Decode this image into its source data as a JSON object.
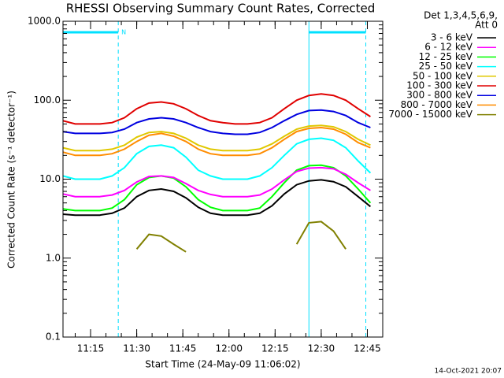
{
  "chart_data": {
    "type": "line",
    "title": "RHESSI Observing Summary Count Rates, Corrected",
    "x_label": "Start Time (24-May-09 11:06:02)",
    "y_label": "Corrected Count Rate (s⁻¹ detector⁻¹)",
    "legend_header": [
      "Det 1,3,4,5,6,9,",
      "Att 0"
    ],
    "timestamp": "14-Oct-2021 20:07",
    "night_label": "N",
    "night_intervals": [
      [
        "11:06:02",
        "11:24:00"
      ],
      [
        "12:26:00",
        "12:44:30"
      ]
    ],
    "night_color": "#00e0ff",
    "log_y": true,
    "xlim": [
      "11:06:02",
      "12:50:00"
    ],
    "xticks": [
      "11:15",
      "11:30",
      "11:45",
      "12:00",
      "12:15",
      "12:30",
      "12:45"
    ],
    "ylim": [
      0.1,
      1000
    ],
    "yticks": [
      0.1,
      {
        "value": 1,
        "label": "1.0"
      },
      {
        "value": 10,
        "label": "10.0"
      },
      {
        "value": 100,
        "label": "100.0"
      },
      {
        "value": 1000,
        "label": "1000.0"
      }
    ],
    "x": [
      "11:06",
      "11:10",
      "11:14",
      "11:18",
      "11:22",
      "11:26",
      "11:30",
      "11:34",
      "11:38",
      "11:42",
      "11:46",
      "11:50",
      "11:54",
      "11:58",
      "12:02",
      "12:06",
      "12:10",
      "12:14",
      "12:18",
      "12:22",
      "12:26",
      "12:30",
      "12:34",
      "12:38",
      "12:42",
      "12:46"
    ],
    "series": [
      {
        "name": "3 - 6 keV",
        "color": "#000000",
        "values": [
          3.6,
          3.5,
          3.5,
          3.5,
          3.7,
          4.3,
          6,
          7.2,
          7.5,
          7,
          5.8,
          4.4,
          3.7,
          3.5,
          3.5,
          3.5,
          3.7,
          4.6,
          6.5,
          8.5,
          9.5,
          9.8,
          9.3,
          8,
          6,
          4.5
        ]
      },
      {
        "name": "6 - 12 keV",
        "color": "#ff00ff",
        "values": [
          6.5,
          6,
          6,
          6,
          6.3,
          7.2,
          9.2,
          10.8,
          11,
          10.5,
          8.8,
          7.2,
          6.4,
          6,
          6,
          6,
          6.3,
          7.5,
          9.8,
          12.5,
          13.8,
          14,
          13.5,
          11.5,
          9,
          7.2
        ]
      },
      {
        "name": "12 - 25 keV",
        "color": "#00ff00",
        "values": [
          4.2,
          4,
          4,
          4,
          4.3,
          5.5,
          8.5,
          10.5,
          11,
          10.3,
          8,
          5.5,
          4.4,
          4,
          4,
          4,
          4.3,
          6,
          9,
          13,
          14.8,
          15,
          14,
          11,
          7.5,
          5
        ]
      },
      {
        "name": "25 - 50 keV",
        "color": "#00ffff",
        "values": [
          11,
          10,
          10,
          10,
          11,
          14,
          21,
          26,
          27,
          25,
          19,
          13,
          11,
          10,
          10,
          10,
          11,
          14,
          20,
          28,
          32,
          33,
          31,
          25,
          17,
          12
        ]
      },
      {
        "name": "50 - 100 keV",
        "color": "#e0c800",
        "values": [
          25,
          23,
          23,
          23,
          24,
          27,
          34,
          39,
          40,
          38,
          33,
          27,
          24,
          23,
          23,
          23,
          24,
          28,
          35,
          43,
          47,
          48,
          46,
          40,
          32,
          27
        ]
      },
      {
        "name": "100 - 300 keV",
        "color": "#e00000",
        "values": [
          55,
          50,
          50,
          50,
          52,
          60,
          78,
          92,
          95,
          90,
          78,
          64,
          55,
          52,
          50,
          50,
          52,
          60,
          78,
          100,
          115,
          120,
          115,
          100,
          78,
          62
        ]
      },
      {
        "name": "300 - 800 keV",
        "color": "#0000e0",
        "values": [
          40,
          38,
          38,
          38,
          39,
          43,
          52,
          58,
          60,
          58,
          52,
          45,
          40,
          38,
          37,
          37,
          39,
          45,
          55,
          66,
          74,
          75,
          72,
          64,
          52,
          45
        ]
      },
      {
        "name": "800 - 7000 keV",
        "color": "#ff8c00",
        "values": [
          22,
          20,
          20,
          20,
          21,
          24,
          30,
          36,
          38,
          35,
          30,
          24,
          21,
          20,
          20,
          20,
          21,
          25,
          32,
          40,
          44,
          45,
          43,
          37,
          29,
          25
        ]
      },
      {
        "name": "7000 - 15000 keV",
        "color": "#808000",
        "values": [
          null,
          null,
          null,
          null,
          null,
          null,
          1.3,
          2,
          1.9,
          1.5,
          1.2,
          null,
          null,
          null,
          null,
          null,
          null,
          null,
          null,
          1.5,
          2.8,
          2.9,
          2.2,
          1.3,
          null,
          null
        ]
      }
    ]
  }
}
